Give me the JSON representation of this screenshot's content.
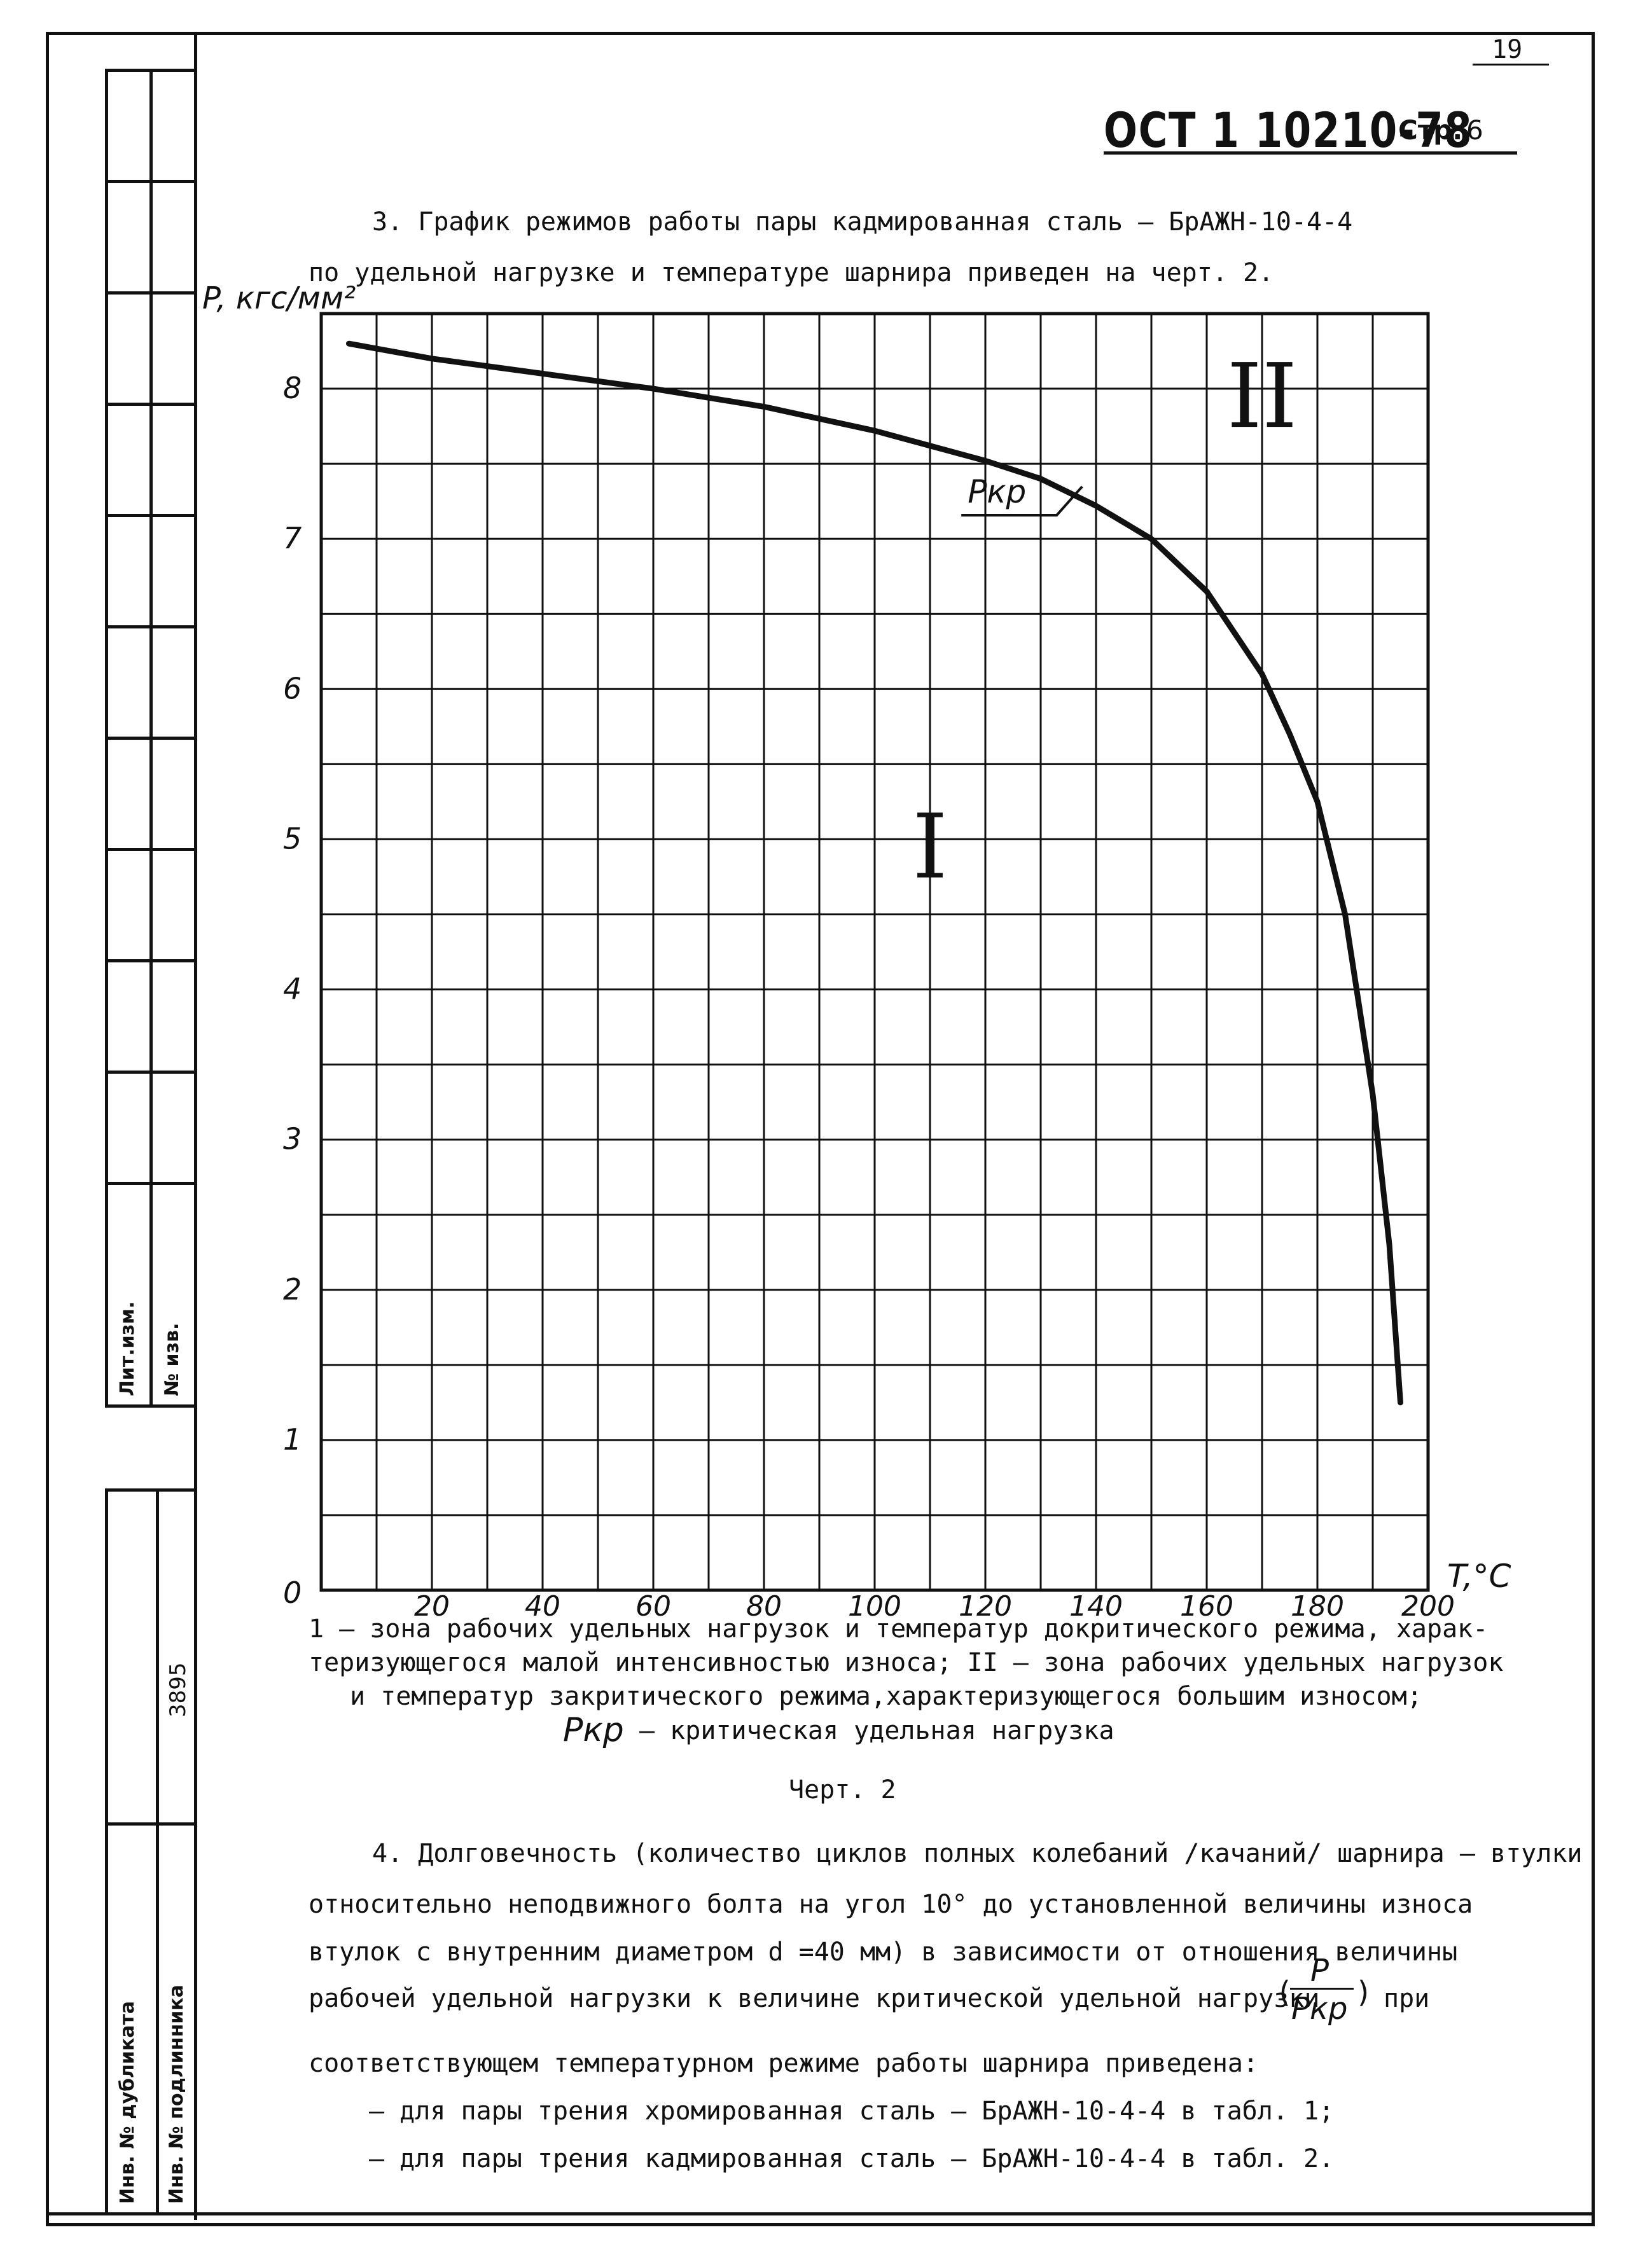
{
  "page_number": "19",
  "header": {
    "doc_code": "ОСТ 1 10210-78",
    "page_label": "Стр.",
    "page_num": "6"
  },
  "para3": {
    "line1": "3. График режимов работы пары кадмированная сталь – БрАЖН-10-4-4",
    "line2": "по удельной нагрузке и температуре шарнира приведен на черт. 2."
  },
  "chart_data": {
    "type": "line",
    "ylabel": "P, кгс/мм²",
    "xlabel": "T,°C",
    "xlim": [
      0,
      200
    ],
    "ylim": [
      0,
      8.5
    ],
    "x_ticks": [
      "20",
      "40",
      "60",
      "80",
      "100",
      "120",
      "140",
      "160",
      "180",
      "200"
    ],
    "y_ticks": [
      "1",
      "2",
      "3",
      "4",
      "5",
      "6",
      "7",
      "8"
    ],
    "origin_label": "0",
    "grid": true,
    "series": [
      {
        "name": "Pкр",
        "x": [
          5,
          20,
          40,
          60,
          80,
          100,
          120,
          130,
          140,
          150,
          160,
          170,
          175,
          180,
          185,
          190,
          193,
          195
        ],
        "y": [
          8.3,
          8.2,
          8.1,
          8.0,
          7.88,
          7.72,
          7.52,
          7.4,
          7.22,
          7.0,
          6.65,
          6.1,
          5.7,
          5.25,
          4.5,
          3.3,
          2.3,
          1.25
        ]
      }
    ],
    "annotations": [
      {
        "text": "I",
        "x": 110,
        "y": 4.9
      },
      {
        "text": "II",
        "x": 170,
        "y": 7.9
      },
      {
        "text": "Pкр",
        "x": 126,
        "y": 7.2
      }
    ]
  },
  "caption": {
    "line1": "1 – зона рабочих удельных нагрузок и температур докритического режима, харак-",
    "line2": "теризующегося малой интенсивностью износа; II – зона рабочих удельных нагрузок",
    "line3": "и температур закритического режима,характеризующегося большим износом;",
    "pkr": "Pкр",
    "line4": "– критическая удельная нагрузка",
    "figure": "Черт. 2"
  },
  "para4": {
    "line1": "4. Долговечность (количество циклов полных колебаний /качаний/ шарнира – втулки",
    "line2": "относительно неподвижного болта на угол 10° до установленной величины износа",
    "line3": "втулок с внутренним диаметром d =40 мм) в зависимости от отношения величины",
    "line4": "рабочей удельной нагрузки к величине критической удельной нагрузки",
    "frac_num": "P",
    "frac_den": "Pкр",
    "line4_end": "при",
    "line5": "соответствующем температурном режиме работы шарнира приведена:",
    "item1": "– для пары трения хромированная сталь – БрАЖН-10-4-4 в табл. 1;",
    "item2": "– для пары трения кадмированная сталь – БрАЖН-10-4-4 в табл. 2."
  },
  "side_stamp": {
    "lit_izm": "Лит.изм.",
    "no_izv": "№ изв.",
    "inv_dubl": "Инв. № дубликата",
    "inv_podl": "Инв. № подлинника",
    "inv_number": "3895"
  }
}
